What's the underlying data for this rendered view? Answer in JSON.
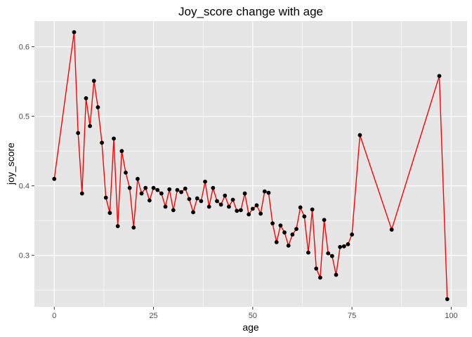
{
  "chart_data": {
    "type": "line",
    "title": "Joy_score change with age",
    "xlabel": "age",
    "ylabel": "joy_score",
    "xlim": [
      -5,
      104
    ],
    "ylim": [
      0.226,
      0.637
    ],
    "x_ticks": [
      0,
      25,
      50,
      75,
      100
    ],
    "x_tick_labels": [
      "0",
      "25",
      "50",
      "75",
      "100"
    ],
    "y_ticks": [
      0.3,
      0.4,
      0.5,
      0.6
    ],
    "y_tick_labels": [
      "0.3",
      "0.4",
      "0.5",
      "0.6"
    ],
    "grid": true,
    "colors": {
      "panel": "#e5e5e5",
      "grid_major": "#ffffff",
      "line": "#ff0000",
      "point": "#000000"
    },
    "series": [
      {
        "x": [
          0,
          5,
          6,
          7,
          8,
          9,
          10,
          11,
          12,
          13,
          14,
          15,
          16,
          17,
          18,
          19,
          20,
          21,
          22,
          23,
          24,
          25,
          26,
          27,
          28,
          29,
          30,
          31,
          32,
          33,
          34,
          35,
          36,
          37,
          38,
          39,
          40,
          41,
          42,
          43,
          44,
          45,
          46,
          47,
          48,
          49,
          50,
          51,
          52,
          53,
          54,
          55,
          56,
          57,
          58,
          59,
          60,
          61,
          62,
          63,
          64,
          65,
          66,
          67,
          68,
          69,
          70,
          71,
          72,
          73,
          74,
          75,
          77,
          85,
          97,
          99
        ],
        "y": [
          0.41,
          0.621,
          0.476,
          0.389,
          0.526,
          0.486,
          0.551,
          0.513,
          0.462,
          0.383,
          0.361,
          0.468,
          0.342,
          0.45,
          0.419,
          0.397,
          0.34,
          0.41,
          0.389,
          0.397,
          0.379,
          0.397,
          0.394,
          0.389,
          0.37,
          0.395,
          0.365,
          0.394,
          0.391,
          0.396,
          0.381,
          0.362,
          0.382,
          0.378,
          0.406,
          0.37,
          0.397,
          0.378,
          0.373,
          0.386,
          0.37,
          0.38,
          0.364,
          0.365,
          0.389,
          0.359,
          0.367,
          0.372,
          0.36,
          0.392,
          0.39,
          0.346,
          0.319,
          0.343,
          0.333,
          0.314,
          0.33,
          0.338,
          0.369,
          0.356,
          0.304,
          0.366,
          0.281,
          0.268,
          0.351,
          0.303,
          0.299,
          0.272,
          0.312,
          0.313,
          0.316,
          0.33,
          0.473,
          0.337,
          0.558,
          0.237
        ]
      }
    ]
  }
}
